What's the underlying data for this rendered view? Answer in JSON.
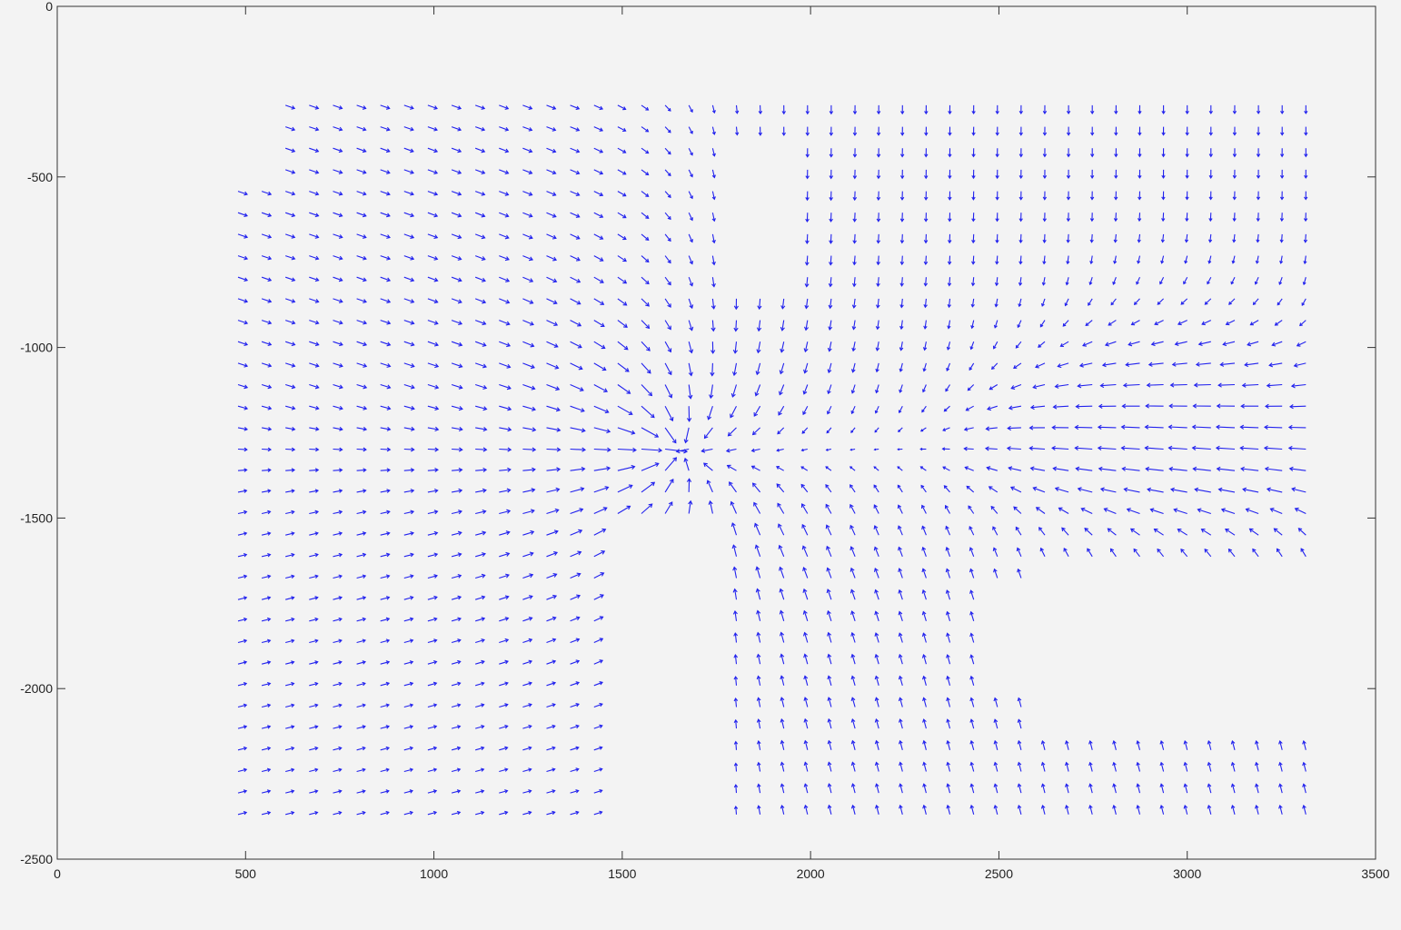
{
  "chart_data": {
    "type": "quiver",
    "title": "",
    "xlabel": "",
    "ylabel": "",
    "xlim": [
      0,
      3500
    ],
    "ylim": [
      -2500,
      0
    ],
    "xticks": [
      0,
      500,
      1000,
      1500,
      2000,
      2500,
      3000,
      3500
    ],
    "yticks": [
      0,
      -500,
      -1000,
      -1500,
      -2000,
      -2500
    ],
    "xtick_labels": [
      "0",
      "500",
      "1000",
      "1500",
      "2000",
      "2500",
      "3000",
      "3500"
    ],
    "ytick_labels": [
      "0",
      "-500",
      "-1000",
      "-1500",
      "-2000",
      "-2500"
    ],
    "grid": false,
    "box": true,
    "arrow_color": "#2222ee",
    "grid_spacing_x": 63,
    "grid_spacing_y": 63,
    "field_extent": {
      "x": [
        480,
        3320
      ],
      "y": [
        -2400,
        -290
      ]
    },
    "vortex_center": [
      1640,
      -1300
    ],
    "flow_regions": [
      {
        "name": "upper-left",
        "x": [
          480,
          1640
        ],
        "y": [
          -1300,
          -290
        ],
        "vector": [
          24,
          -9
        ]
      },
      {
        "name": "lower-left",
        "x": [
          480,
          1640
        ],
        "y": [
          -2400,
          -1300
        ],
        "vector": [
          22,
          6
        ]
      },
      {
        "name": "upper-right",
        "x": [
          1640,
          3320
        ],
        "y": [
          -1300,
          -290
        ],
        "vector": [
          0,
          -24
        ]
      },
      {
        "name": "right-mid",
        "x": [
          2400,
          3320
        ],
        "y": [
          -1600,
          -800
        ],
        "vector": [
          -55,
          4
        ]
      },
      {
        "name": "lower-right",
        "x": [
          1760,
          3320
        ],
        "y": [
          -2400,
          -1300
        ],
        "vector": [
          -6,
          26
        ]
      }
    ],
    "empty_regions": [
      {
        "x": [
          1460,
          1760
        ],
        "y": [
          -2400,
          -1520
        ]
      },
      {
        "x": [
          2600,
          3320
        ],
        "y": [
          -2150,
          -1640
        ]
      },
      {
        "x": [
          2450,
          2600
        ],
        "y": [
          -2050,
          -1700
        ]
      },
      {
        "x": [
          480,
          550
        ],
        "y": [
          -530,
          -290
        ]
      },
      {
        "x": [
          1760,
          1980
        ],
        "y": [
          -800,
          -400
        ]
      }
    ]
  }
}
